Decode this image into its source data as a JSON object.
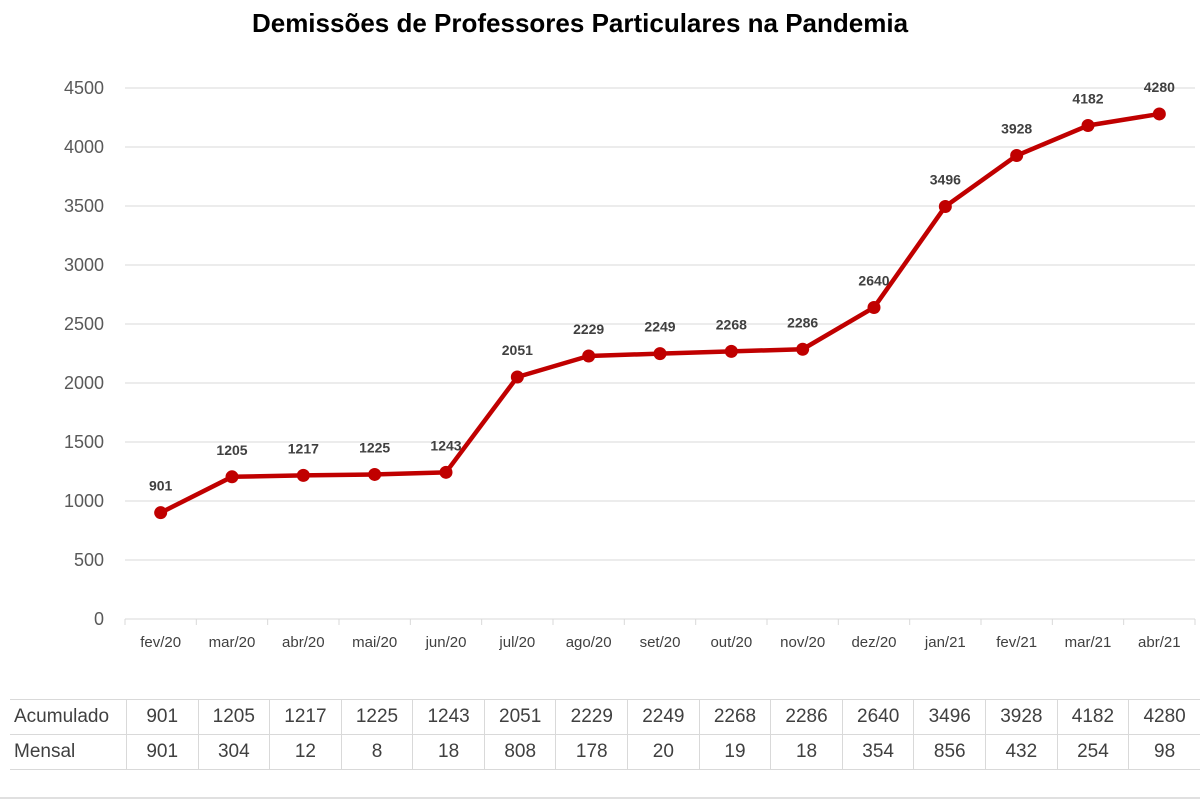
{
  "chart_data": {
    "type": "line",
    "title": "Demissões de Professores Particulares na Pandemia",
    "xlabel": "",
    "ylabel": "",
    "categories": [
      "fev/20",
      "mar/20",
      "abr/20",
      "mai/20",
      "jun/20",
      "jul/20",
      "ago/20",
      "set/20",
      "out/20",
      "nov/20",
      "dez/20",
      "jan/21",
      "fev/21",
      "mar/21",
      "abr/21"
    ],
    "series": [
      {
        "values": [
          901,
          1205,
          1217,
          1225,
          1243,
          2051,
          2229,
          2249,
          2268,
          2286,
          2640,
          3496,
          3928,
          4182,
          4280
        ]
      }
    ],
    "ylim": [
      0,
      4500
    ],
    "yticks": [
      0,
      500,
      1000,
      1500,
      2000,
      2500,
      3000,
      3500,
      4000,
      4500
    ],
    "grid": true,
    "data_labels": true,
    "line_color": "#c00000",
    "table": {
      "rows": [
        {
          "label": "Acumulado",
          "values": [
            901,
            1205,
            1217,
            1225,
            1243,
            2051,
            2229,
            2249,
            2268,
            2286,
            2640,
            3496,
            3928,
            4182,
            4280
          ]
        },
        {
          "label": "Mensal",
          "values": [
            901,
            304,
            12,
            8,
            18,
            808,
            178,
            20,
            19,
            18,
            354,
            856,
            432,
            254,
            98
          ]
        }
      ]
    }
  }
}
